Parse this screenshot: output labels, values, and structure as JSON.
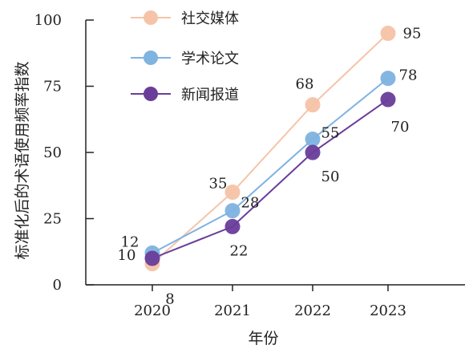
{
  "chart_data": {
    "type": "line",
    "xlabel": "年份",
    "ylabel": "标准化后的术语使用频率指数",
    "categories": [
      "2020",
      "2021",
      "2022",
      "2023"
    ],
    "ylim": [
      0,
      100
    ],
    "yticks": [
      0,
      25,
      50,
      75,
      100
    ],
    "grid": false,
    "legend_position": "top-left",
    "series": [
      {
        "name": "社交媒体",
        "values": [
          8,
          35,
          68,
          95
        ],
        "color": "#f5c4a8"
      },
      {
        "name": "学术论文",
        "values": [
          12,
          28,
          55,
          78
        ],
        "color": "#7fb3e0"
      },
      {
        "name": "新闻报道",
        "values": [
          10,
          22,
          50,
          70
        ],
        "color": "#6a3d9a"
      }
    ]
  }
}
